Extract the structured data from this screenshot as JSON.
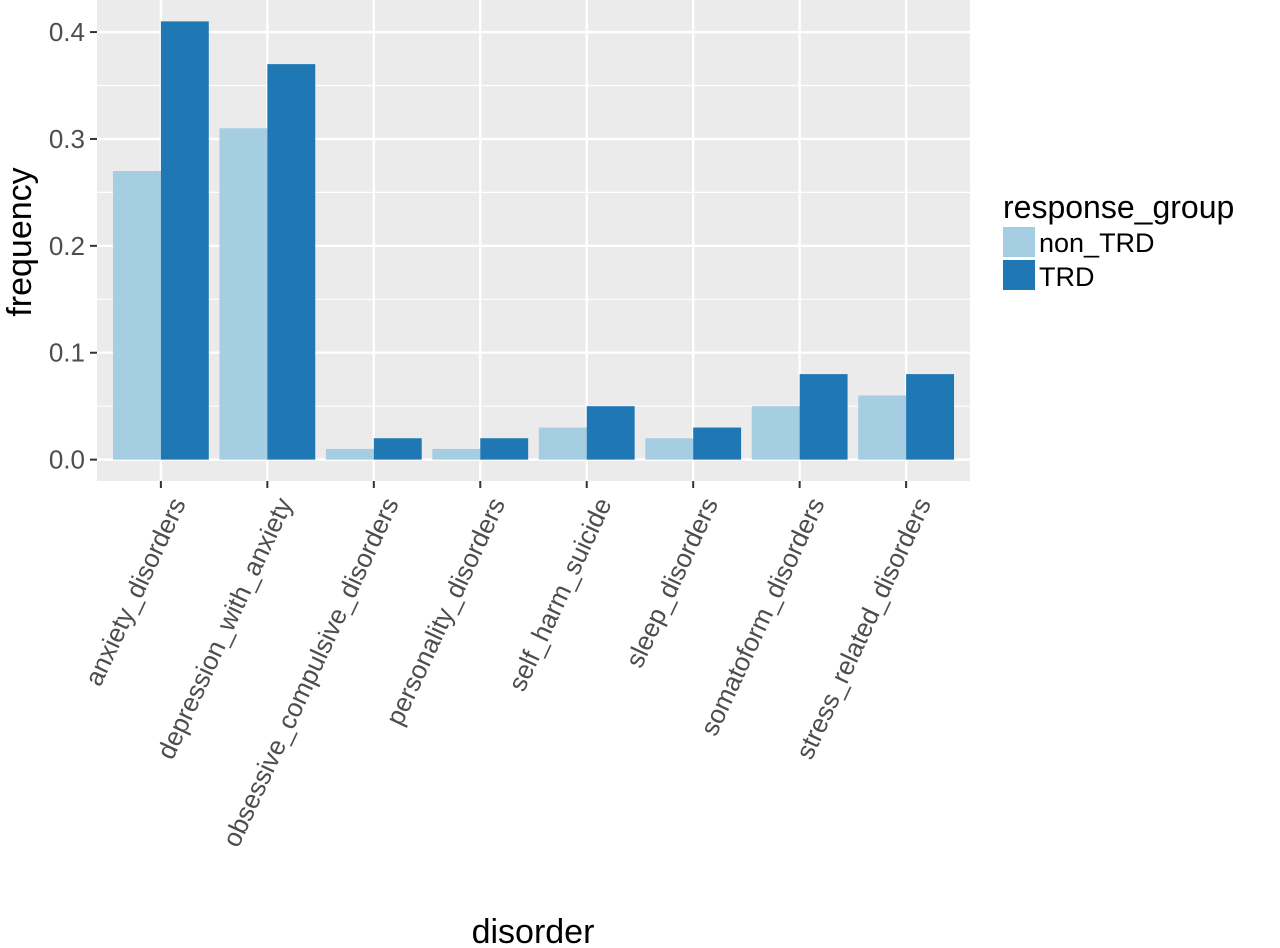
{
  "chart_data": {
    "type": "bar",
    "xlabel": "disorder",
    "ylabel": "frequency",
    "categories": [
      "anxiety_disorders",
      "depression_with_anxiety",
      "obsessive_compulsive_disorders",
      "personality_disorders",
      "self_harm_suicide",
      "sleep_disorders",
      "somatoform_disorders",
      "stress_related_disorders"
    ],
    "series": [
      {
        "name": "non_TRD",
        "color": "#a6cee3",
        "values": [
          0.27,
          0.31,
          0.01,
          0.01,
          0.03,
          0.02,
          0.05,
          0.06
        ]
      },
      {
        "name": "TRD",
        "color": "#1f78b4",
        "values": [
          0.41,
          0.37,
          0.02,
          0.02,
          0.05,
          0.03,
          0.08,
          0.08
        ]
      }
    ],
    "ylim": [
      -0.02,
      0.43
    ],
    "yticks": [
      0.0,
      0.1,
      0.2,
      0.3,
      0.4
    ],
    "ytick_labels": [
      "0.0",
      "0.1",
      "0.2",
      "0.3",
      "0.4"
    ],
    "grid": true,
    "legend": {
      "title": "response_group",
      "position": "right"
    }
  }
}
